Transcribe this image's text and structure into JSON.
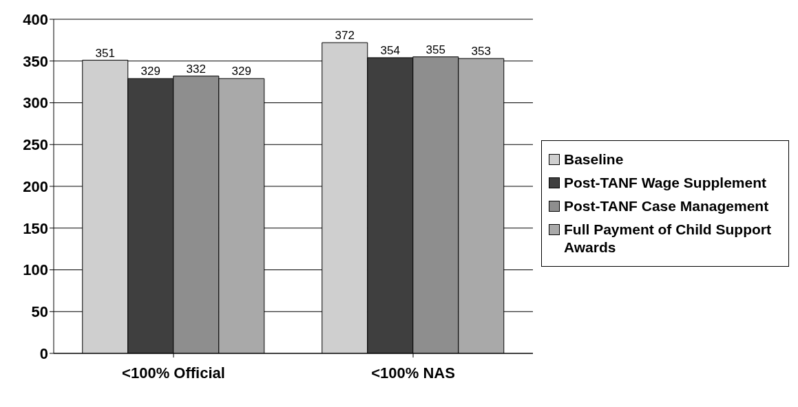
{
  "chart_data": {
    "type": "bar",
    "categories": [
      "<100% Official",
      "<100% NAS"
    ],
    "series": [
      {
        "name": "Baseline",
        "color": "#cfcfcf",
        "values": [
          351,
          372
        ]
      },
      {
        "name": "Post-TANF Wage Supplement",
        "color": "#3f3f3f",
        "values": [
          329,
          354
        ]
      },
      {
        "name": "Post-TANF Case Management",
        "color": "#8e8e8e",
        "values": [
          332,
          355
        ]
      },
      {
        "name": "Full Payment of Child Support Awards",
        "color": "#a9a9a9",
        "values": [
          329,
          353
        ]
      }
    ],
    "ylim": [
      0,
      400
    ],
    "yticks": [
      0,
      50,
      100,
      150,
      200,
      250,
      300,
      350,
      400
    ],
    "grid": "y",
    "legend": "right",
    "data_labels": true
  }
}
